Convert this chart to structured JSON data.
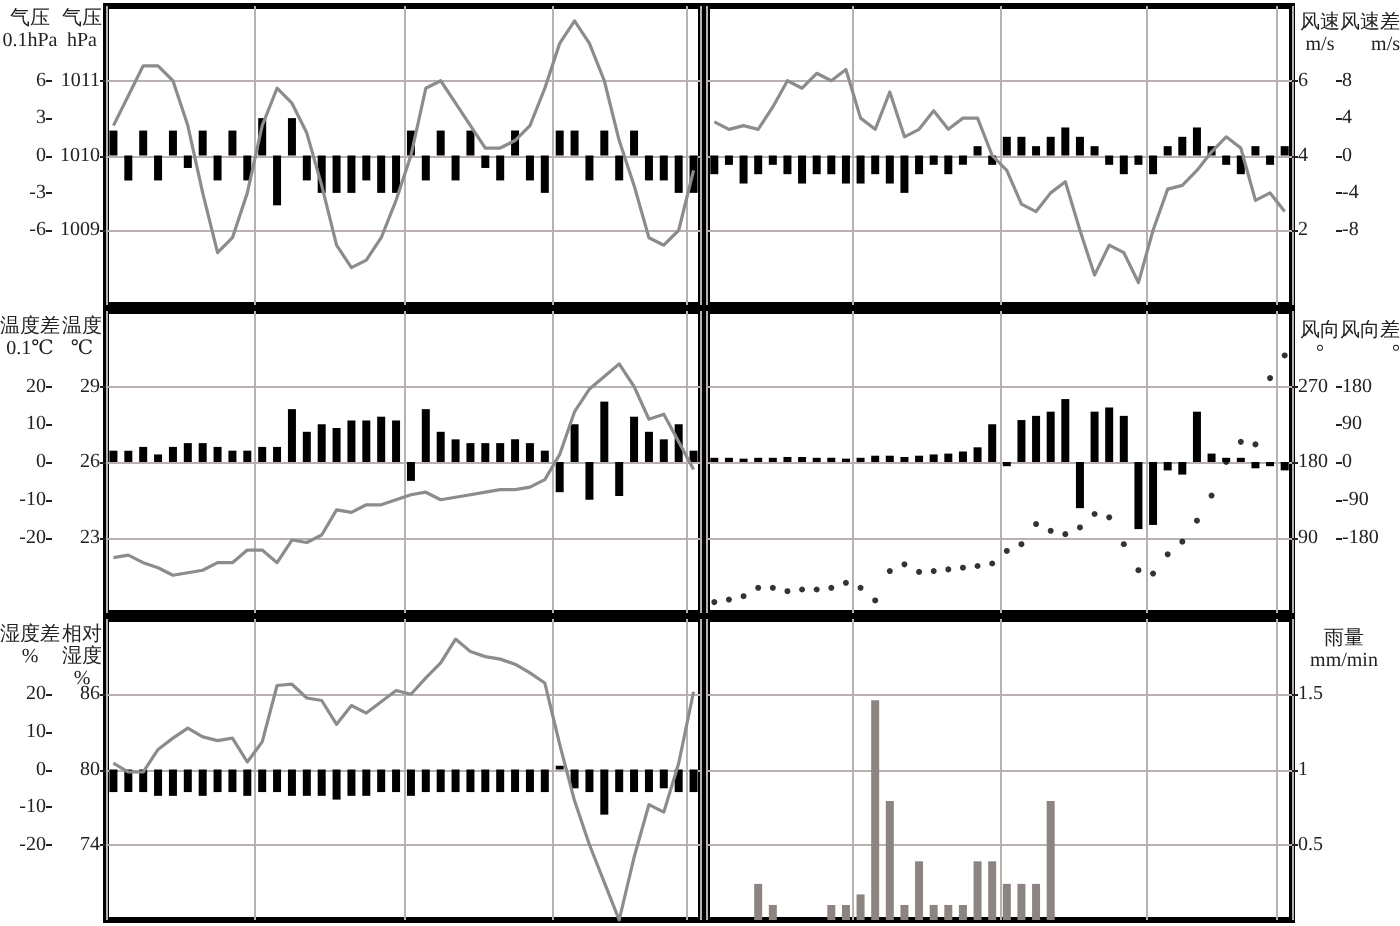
{
  "chart_data": [
    {
      "type": "line",
      "ylabel": "气压\nhPa",
      "y2label": "气压\n0.1hPa",
      "categories": [
        null,
        null,
        null,
        null,
        null,
        null,
        null,
        null,
        null,
        null,
        null,
        null,
        null,
        null,
        null,
        null,
        null,
        null,
        null,
        null,
        null,
        null,
        null,
        null,
        null,
        null,
        null,
        null,
        null,
        null,
        null,
        null,
        null,
        null,
        null,
        null,
        null,
        null,
        null,
        null
      ],
      "ylim": [
        1008,
        1012
      ],
      "yticks": [
        1009,
        1010,
        1011
      ],
      "y2lim": [
        -12,
        12
      ],
      "y2ticks": [
        -6,
        -3,
        0,
        3,
        6
      ],
      "tick_labels": "y",
      "grid": true,
      "series": [
        {
          "type": "bar",
          "axis": "y2",
          "color": "#000000",
          "values": [
            2,
            -2,
            2,
            -2,
            2,
            -1,
            2,
            -2,
            2,
            -2,
            3,
            -4,
            3,
            -2,
            -3,
            -3,
            -3,
            -2,
            -3,
            -3,
            2,
            -2,
            2,
            -2,
            2,
            -1,
            -2,
            2,
            -2,
            -3,
            2,
            2,
            -2,
            2,
            -2,
            2,
            -2,
            -2,
            -3,
            -3
          ]
        },
        {
          "color": "#8c8c8c",
          "values": [
            1010.4,
            1010.8,
            1011.2,
            1011.2,
            1011.0,
            1010.4,
            1009.5,
            1008.7,
            1008.9,
            1009.5,
            1010.4,
            1010.9,
            1010.7,
            1010.3,
            1009.6,
            1008.8,
            1008.5,
            1008.6,
            1008.9,
            1009.4,
            1010.0,
            1010.9,
            1011.0,
            1010.7,
            1010.4,
            1010.1,
            1010.1,
            1010.2,
            1010.4,
            1010.9,
            1011.5,
            1011.8,
            1011.5,
            1011.0,
            1010.2,
            1009.6,
            1008.9,
            1008.8,
            1009.0,
            1009.8
          ]
        }
      ]
    },
    {
      "type": "line",
      "ylabel": "风速\nm/s",
      "y2label": "风速差\nm/s",
      "categories": [
        null,
        null,
        null,
        null,
        null,
        null,
        null,
        null,
        null,
        null,
        null,
        null,
        null,
        null,
        null,
        null,
        null,
        null,
        null,
        null,
        null,
        null,
        null,
        null,
        null,
        null,
        null,
        null,
        null,
        null,
        null,
        null,
        null,
        null,
        null,
        null,
        null,
        null,
        null,
        null
      ],
      "ylim": [
        0,
        8
      ],
      "yticks": [
        2,
        4,
        6
      ],
      "y2lim": [
        -16,
        16
      ],
      "y2ticks": [
        -8,
        -4,
        0,
        4,
        8
      ],
      "tick_labels": "y",
      "grid": true,
      "series": [
        {
          "type": "bar",
          "axis": "y2",
          "color": "#000000",
          "values": [
            -2,
            -1,
            -3,
            -2,
            -1,
            -2,
            -3,
            -2,
            -2,
            -3,
            -3,
            -2,
            -3,
            -4,
            -2,
            -1,
            -2,
            -1,
            1,
            -1,
            2,
            2,
            1,
            2,
            3,
            2,
            1,
            -1,
            -2,
            -1,
            -2,
            1,
            2,
            3,
            1,
            -1,
            -2,
            1,
            -1,
            1
          ]
        },
        {
          "color": "#8c8c8c",
          "values": [
            4.9,
            4.7,
            4.8,
            4.7,
            5.3,
            6.0,
            5.8,
            6.2,
            6.0,
            6.3,
            5.0,
            4.7,
            5.7,
            4.5,
            4.7,
            5.2,
            4.7,
            5.0,
            5.0,
            4.0,
            3.6,
            2.7,
            2.5,
            3.0,
            3.3,
            2.0,
            0.8,
            1.6,
            1.4,
            0.6,
            2.0,
            3.1,
            3.2,
            3.6,
            4.1,
            4.5,
            4.2,
            2.8,
            3.0,
            2.5
          ]
        }
      ]
    },
    {
      "type": "line",
      "ylabel": "温度\n℃",
      "y2label": "温度差\n0.1℃",
      "categories": [
        null,
        null,
        null,
        null,
        null,
        null,
        null,
        null,
        null,
        null,
        null,
        null,
        null,
        null,
        null,
        null,
        null,
        null,
        null,
        null,
        null,
        null,
        null,
        null,
        null,
        null,
        null,
        null,
        null,
        null,
        null,
        null,
        null,
        null,
        null,
        null,
        null,
        null,
        null,
        null
      ],
      "ylim": [
        20,
        32
      ],
      "yticks": [
        23,
        26,
        29
      ],
      "y2lim": [
        -40,
        40
      ],
      "y2ticks": [
        -20,
        -10,
        0,
        10,
        20
      ],
      "tick_labels": "y",
      "grid": true,
      "series": [
        {
          "type": "bar",
          "axis": "y2",
          "color": "#000000",
          "values": [
            3,
            3,
            4,
            2,
            4,
            5,
            5,
            4,
            3,
            3,
            4,
            4,
            14,
            8,
            10,
            9,
            11,
            11,
            12,
            11,
            -5,
            14,
            8,
            6,
            5,
            5,
            5,
            6,
            5,
            3,
            -8,
            10,
            -10,
            16,
            -9,
            12,
            8,
            6,
            10,
            3
          ]
        },
        {
          "color": "#8c8c8c",
          "values": [
            22.2,
            22.3,
            22.0,
            21.8,
            21.5,
            21.6,
            21.7,
            22.0,
            22.0,
            22.5,
            22.5,
            22.0,
            22.9,
            22.8,
            23.1,
            24.1,
            24.0,
            24.3,
            24.3,
            24.5,
            24.7,
            24.8,
            24.5,
            24.6,
            24.7,
            24.8,
            24.9,
            24.9,
            25.0,
            25.3,
            26.3,
            28.0,
            28.9,
            29.4,
            29.9,
            29.0,
            27.7,
            27.9,
            26.8,
            25.7
          ]
        }
      ]
    },
    {
      "type": "scatter",
      "ylabel": "风向\n°",
      "y2label": "风向差\n°",
      "categories": [
        null,
        null,
        null,
        null,
        null,
        null,
        null,
        null,
        null,
        null,
        null,
        null,
        null,
        null,
        null,
        null,
        null,
        null,
        null,
        null,
        null,
        null,
        null,
        null,
        null,
        null,
        null,
        null,
        null,
        null,
        null,
        null,
        null,
        null,
        null,
        null,
        null,
        null,
        null,
        null
      ],
      "ylim": [
        0,
        360
      ],
      "yticks": [
        90,
        180,
        270
      ],
      "y2lim": [
        -360,
        360
      ],
      "y2ticks": [
        -180,
        -90,
        0,
        90,
        180
      ],
      "tick_labels": "y",
      "grid": true,
      "marker": "circle",
      "series": [
        {
          "type": "bar",
          "axis": "y2",
          "color": "#000000",
          "values": [
            10,
            10,
            8,
            10,
            10,
            12,
            12,
            10,
            10,
            8,
            10,
            15,
            15,
            12,
            15,
            18,
            20,
            25,
            35,
            90,
            -10,
            100,
            110,
            120,
            150,
            -110,
            120,
            130,
            110,
            -160,
            -150,
            -20,
            -30,
            120,
            20,
            10,
            10,
            -15,
            -10,
            -20
          ]
        },
        {
          "color": "#000000",
          "values": [
            13,
            16,
            20,
            30,
            30,
            26,
            28,
            28,
            30,
            36,
            30,
            15,
            50,
            58,
            49,
            50,
            52,
            54,
            56,
            59,
            74,
            82,
            106,
            98,
            94,
            102,
            118,
            114,
            82,
            51,
            47,
            70,
            85,
            110,
            140,
            180,
            204,
            201,
            280,
            307
          ]
        }
      ]
    },
    {
      "type": "line",
      "ylabel": "相对湿度\n%",
      "y2label": "湿度差\n%",
      "categories": [
        null,
        null,
        null,
        null,
        null,
        null,
        null,
        null,
        null,
        null,
        null,
        null,
        null,
        null,
        null,
        null,
        null,
        null,
        null,
        null,
        null,
        null,
        null,
        null,
        null,
        null,
        null,
        null,
        null,
        null,
        null,
        null,
        null,
        null,
        null,
        null,
        null,
        null,
        null,
        null
      ],
      "ylim": [
        68,
        92
      ],
      "yticks": [
        74,
        80,
        86
      ],
      "y2lim": [
        -40,
        40
      ],
      "y2ticks": [
        -20,
        -10,
        0,
        10,
        20
      ],
      "tick_labels": "y",
      "grid": true,
      "series": [
        {
          "type": "bar",
          "axis": "y2",
          "color": "#000000",
          "values": [
            -6,
            -6,
            -6,
            -7,
            -7,
            -6,
            -7,
            -6,
            -6,
            -7,
            -6,
            -6,
            -7,
            -7,
            -7,
            -8,
            -7,
            -7,
            -6,
            -6,
            -7,
            -6,
            -6,
            -6,
            -6,
            -6,
            -6,
            -6,
            -6,
            -6,
            1,
            -5,
            -6,
            -12,
            -6,
            -6,
            -6,
            -5,
            -6,
            -6
          ]
        },
        {
          "color": "#8c8c8c",
          "values": [
            80.5,
            79.8,
            79.8,
            81.6,
            82.5,
            83.3,
            82.6,
            82.3,
            82.5,
            80.6,
            82.2,
            86.7,
            86.8,
            85.7,
            85.5,
            83.6,
            85.1,
            84.5,
            85.4,
            86.3,
            86.0,
            87.3,
            88.5,
            90.4,
            89.4,
            89.0,
            88.8,
            88.4,
            87.7,
            86.9,
            82.0,
            77.5,
            74.0,
            71.0,
            68.0,
            73.0,
            77.2,
            76.6,
            80.5,
            86.2
          ]
        }
      ]
    },
    {
      "type": "bar",
      "ylabel": "雨量\nmm/min",
      "categories": [
        null,
        null,
        null,
        null,
        null,
        null,
        null,
        null,
        null,
        null,
        null,
        null,
        null,
        null,
        null,
        null,
        null,
        null,
        null,
        null,
        null,
        null,
        null,
        null,
        null,
        null,
        null,
        null,
        null,
        null,
        null,
        null,
        null,
        null,
        null,
        null,
        null,
        null,
        null,
        null
      ],
      "ylim": [
        0,
        2
      ],
      "yticks": [
        0.5,
        1,
        1.5
      ],
      "tick_labels": "y",
      "grid": true,
      "series": [
        {
          "color": "#8c8480",
          "values": [
            0,
            0,
            0,
            0.24,
            0.1,
            0,
            0,
            0,
            0.1,
            0.1,
            0.17,
            1.46,
            0.79,
            0.1,
            0.39,
            0.1,
            0.1,
            0.1,
            0.39,
            0.39,
            0.24,
            0.24,
            0.24,
            0.79,
            0,
            0,
            0,
            0,
            0,
            0,
            0,
            0,
            0,
            0,
            0,
            0,
            0,
            0,
            0,
            0
          ]
        }
      ]
    }
  ]
}
